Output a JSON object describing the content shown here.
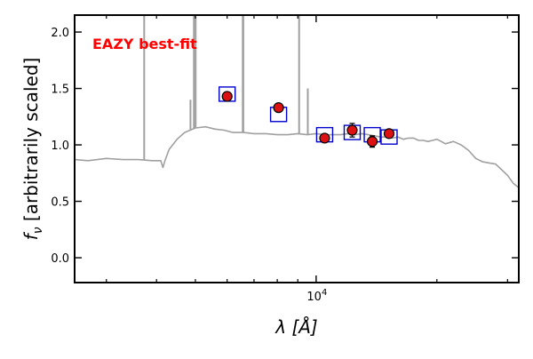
{
  "chart_data": {
    "type": "scatter",
    "title": "",
    "xlabel": "λ [Å]",
    "ylabel": "f_ν [arbitrarily scaled]",
    "xscale": "log",
    "xlim": [
      2500,
      32000
    ],
    "ylim": [
      -0.22,
      2.15
    ],
    "grid": false,
    "legend": "none",
    "x_ticks": [
      {
        "value": 10000,
        "label": "10",
        "exponent": "4"
      }
    ],
    "y_ticks": [
      {
        "value": 0.0,
        "label": "0.0"
      },
      {
        "value": 0.5,
        "label": "0.5"
      },
      {
        "value": 1.0,
        "label": "1.0"
      },
      {
        "value": 1.5,
        "label": "1.5"
      },
      {
        "value": 2.0,
        "label": "2.0"
      }
    ],
    "annotation": {
      "text": "EAZY best-fit",
      "color": "#ff0000",
      "placement": "top-left"
    },
    "colors": {
      "template": "#a0a0a0",
      "model_box": "#0000cc",
      "observed_fill": "#dd1111",
      "observed_edge": "#000000",
      "frame": "#000000"
    },
    "series": [
      {
        "kind": "model_photometry",
        "x": [
          6000,
          8060,
          10500,
          12300,
          13800,
          15200
        ],
        "y": [
          1.45,
          1.27,
          1.09,
          1.11,
          1.09,
          1.07
        ]
      },
      {
        "kind": "observed_photometry",
        "x": [
          6000,
          8060,
          10500,
          12300,
          13800,
          15200
        ],
        "y": [
          1.43,
          1.33,
          1.06,
          1.13,
          1.03,
          1.1
        ],
        "yerr": [
          0.015,
          0.015,
          0.02,
          0.06,
          0.05,
          0.02
        ]
      },
      {
        "kind": "template",
        "x": [
          2500,
          2700,
          3000,
          3300,
          3600,
          3900,
          4100,
          4150,
          4200,
          4300,
          4500,
          4700,
          5000,
          5300,
          5600,
          5900,
          6200,
          6600,
          7000,
          7500,
          8000,
          8500,
          9000,
          9500,
          10000,
          10500,
          11000,
          11500,
          12000,
          12500,
          13000,
          13500,
          14000,
          14500,
          15000,
          15500,
          16000,
          16500,
          17000,
          17500,
          18000,
          18500,
          19000,
          19500,
          20000,
          20500,
          21000,
          22000,
          23000,
          24000,
          25000,
          26000,
          27000,
          28000,
          29000,
          30000,
          31000,
          32000
        ],
        "y": [
          0.87,
          0.86,
          0.88,
          0.87,
          0.87,
          0.86,
          0.86,
          0.8,
          0.86,
          0.96,
          1.05,
          1.11,
          1.15,
          1.16,
          1.14,
          1.13,
          1.11,
          1.11,
          1.1,
          1.1,
          1.09,
          1.09,
          1.1,
          1.09,
          1.1,
          1.09,
          1.09,
          1.09,
          1.1,
          1.09,
          1.1,
          1.09,
          1.08,
          1.07,
          1.07,
          1.06,
          1.07,
          1.05,
          1.06,
          1.06,
          1.04,
          1.04,
          1.03,
          1.04,
          1.05,
          1.03,
          1.01,
          1.03,
          1.0,
          0.95,
          0.88,
          0.85,
          0.84,
          0.83,
          0.78,
          0.73,
          0.66,
          0.62
        ]
      },
      {
        "kind": "emission_lines",
        "x": [
          3727,
          4861,
          4959,
          5007,
          6563,
          6583,
          9069,
          9532
        ],
        "y_top": [
          2.15,
          1.4,
          2.15,
          2.15,
          2.15,
          2.15,
          2.15,
          1.5
        ]
      }
    ]
  }
}
